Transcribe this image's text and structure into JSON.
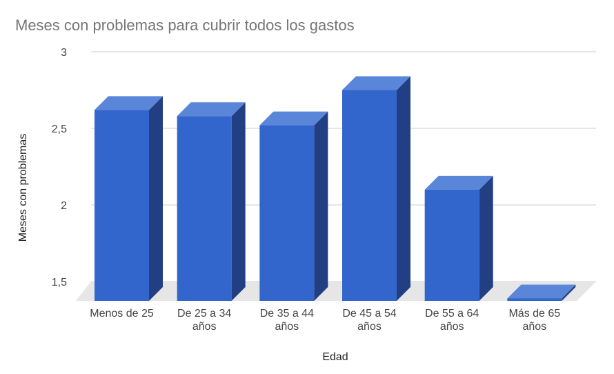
{
  "chart_data": {
    "type": "bar",
    "title": "Meses con problemas para cubrir todos los gastos",
    "xlabel": "Edad",
    "ylabel": "Meses con problemas",
    "categories": [
      [
        "Menos de 25"
      ],
      [
        "De 25 a 34",
        "años"
      ],
      [
        "De 35 a 44",
        "años"
      ],
      [
        "De 45 a 54",
        "años"
      ],
      [
        "De 55 a 64",
        "años"
      ],
      [
        "Más de 65",
        "años"
      ]
    ],
    "values": [
      2.71,
      2.67,
      2.61,
      2.84,
      2.19,
      1.48
    ],
    "ylim": [
      1.5,
      3
    ],
    "yticks": [
      "1,5",
      "2",
      "2,5",
      "3"
    ],
    "ytick_values": [
      1.5,
      2,
      2.5,
      3
    ],
    "grid": true,
    "bar_style": "3d",
    "colors": {
      "front": "#3366cc",
      "side": "#223f84",
      "top": "#5a86d9",
      "floor": "#e6e6e6",
      "grid": "#cccccc"
    }
  }
}
